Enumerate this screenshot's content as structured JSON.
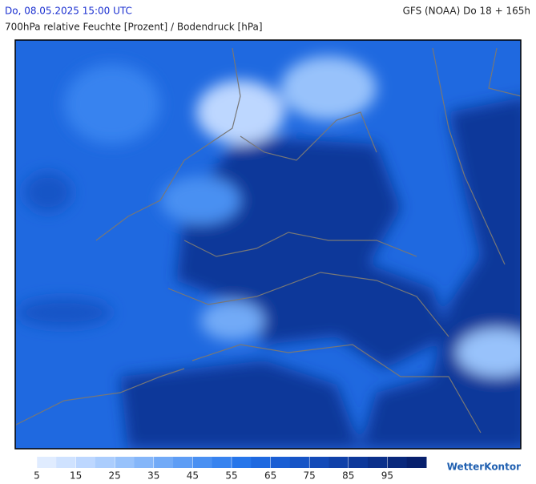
{
  "header": {
    "datetime": "Do, 08.05.2025 15:00 UTC",
    "model": "GFS (NOAA) Do 18 + 165h",
    "subtitle": "700hPa relative Feuchte [Prozent] / Bodendruck [hPa]"
  },
  "colorbar": {
    "colors": [
      "#e0ecff",
      "#cfe2ff",
      "#bdd7ff",
      "#abcdfd",
      "#98c2fb",
      "#85b6f9",
      "#72aaf7",
      "#5e9df5",
      "#4a90f2",
      "#3883ef",
      "#2776ea",
      "#1f69e0",
      "#1a5ed4",
      "#1654c6",
      "#134ab8",
      "#1041a9",
      "#0d389a",
      "#0b308b",
      "#09287c",
      "#07206d"
    ],
    "lim": [
      5,
      105
    ],
    "ticks": [
      5,
      15,
      25,
      35,
      45,
      55,
      65,
      75,
      85,
      95
    ]
  },
  "logo": "WetterKontor"
}
